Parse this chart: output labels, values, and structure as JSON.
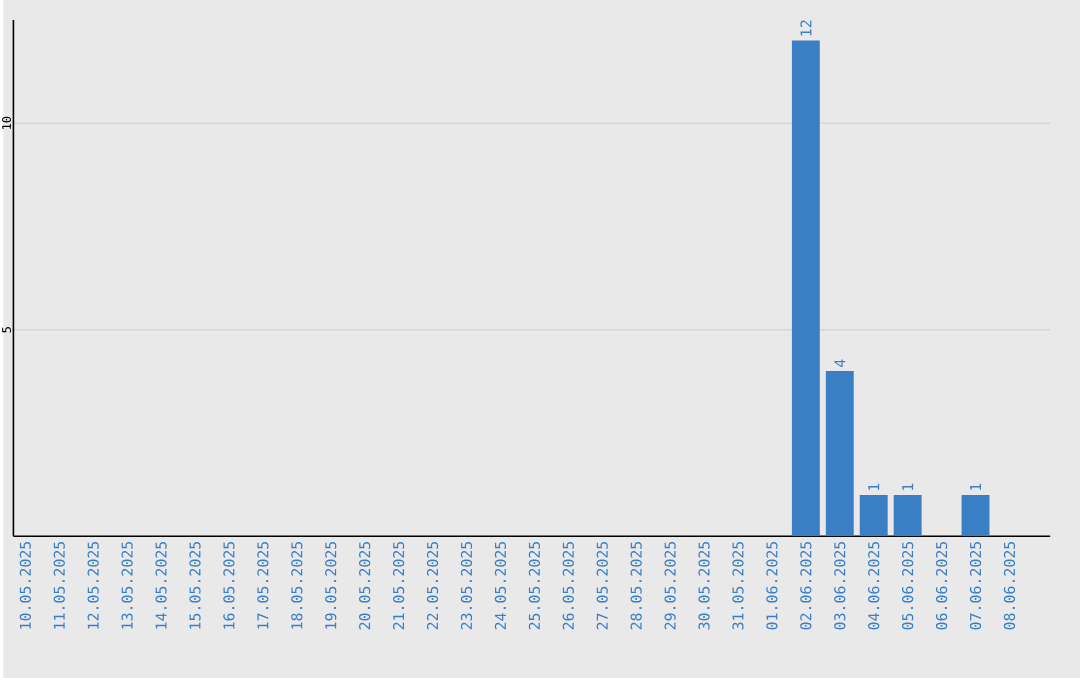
{
  "chart_data": {
    "type": "bar",
    "categories": [
      "10.05.2025",
      "11.05.2025",
      "12.05.2025",
      "13.05.2025",
      "14.05.2025",
      "15.05.2025",
      "16.05.2025",
      "17.05.2025",
      "18.05.2025",
      "19.05.2025",
      "20.05.2025",
      "21.05.2025",
      "22.05.2025",
      "23.05.2025",
      "24.05.2025",
      "25.05.2025",
      "26.05.2025",
      "27.05.2025",
      "28.05.2025",
      "29.05.2025",
      "30.05.2025",
      "31.05.2025",
      "01.06.2025",
      "02.06.2025",
      "03.06.2025",
      "04.06.2025",
      "05.06.2025",
      "06.06.2025",
      "07.06.2025",
      "08.06.2025"
    ],
    "values": [
      0,
      0,
      0,
      0,
      0,
      0,
      0,
      0,
      0,
      0,
      0,
      0,
      0,
      0,
      0,
      0,
      0,
      0,
      0,
      0,
      0,
      0,
      0,
      12,
      4,
      1,
      1,
      0,
      1,
      0
    ],
    "value_labels": [
      null,
      null,
      null,
      null,
      null,
      null,
      null,
      null,
      null,
      null,
      null,
      null,
      null,
      null,
      null,
      null,
      null,
      null,
      null,
      null,
      null,
      null,
      null,
      "12",
      "4",
      "1",
      "1",
      null,
      "1",
      null
    ],
    "color": "#3a7ec4",
    "ylim": [
      0,
      12.5
    ],
    "yticks": [
      5,
      10
    ],
    "grid": "y"
  }
}
